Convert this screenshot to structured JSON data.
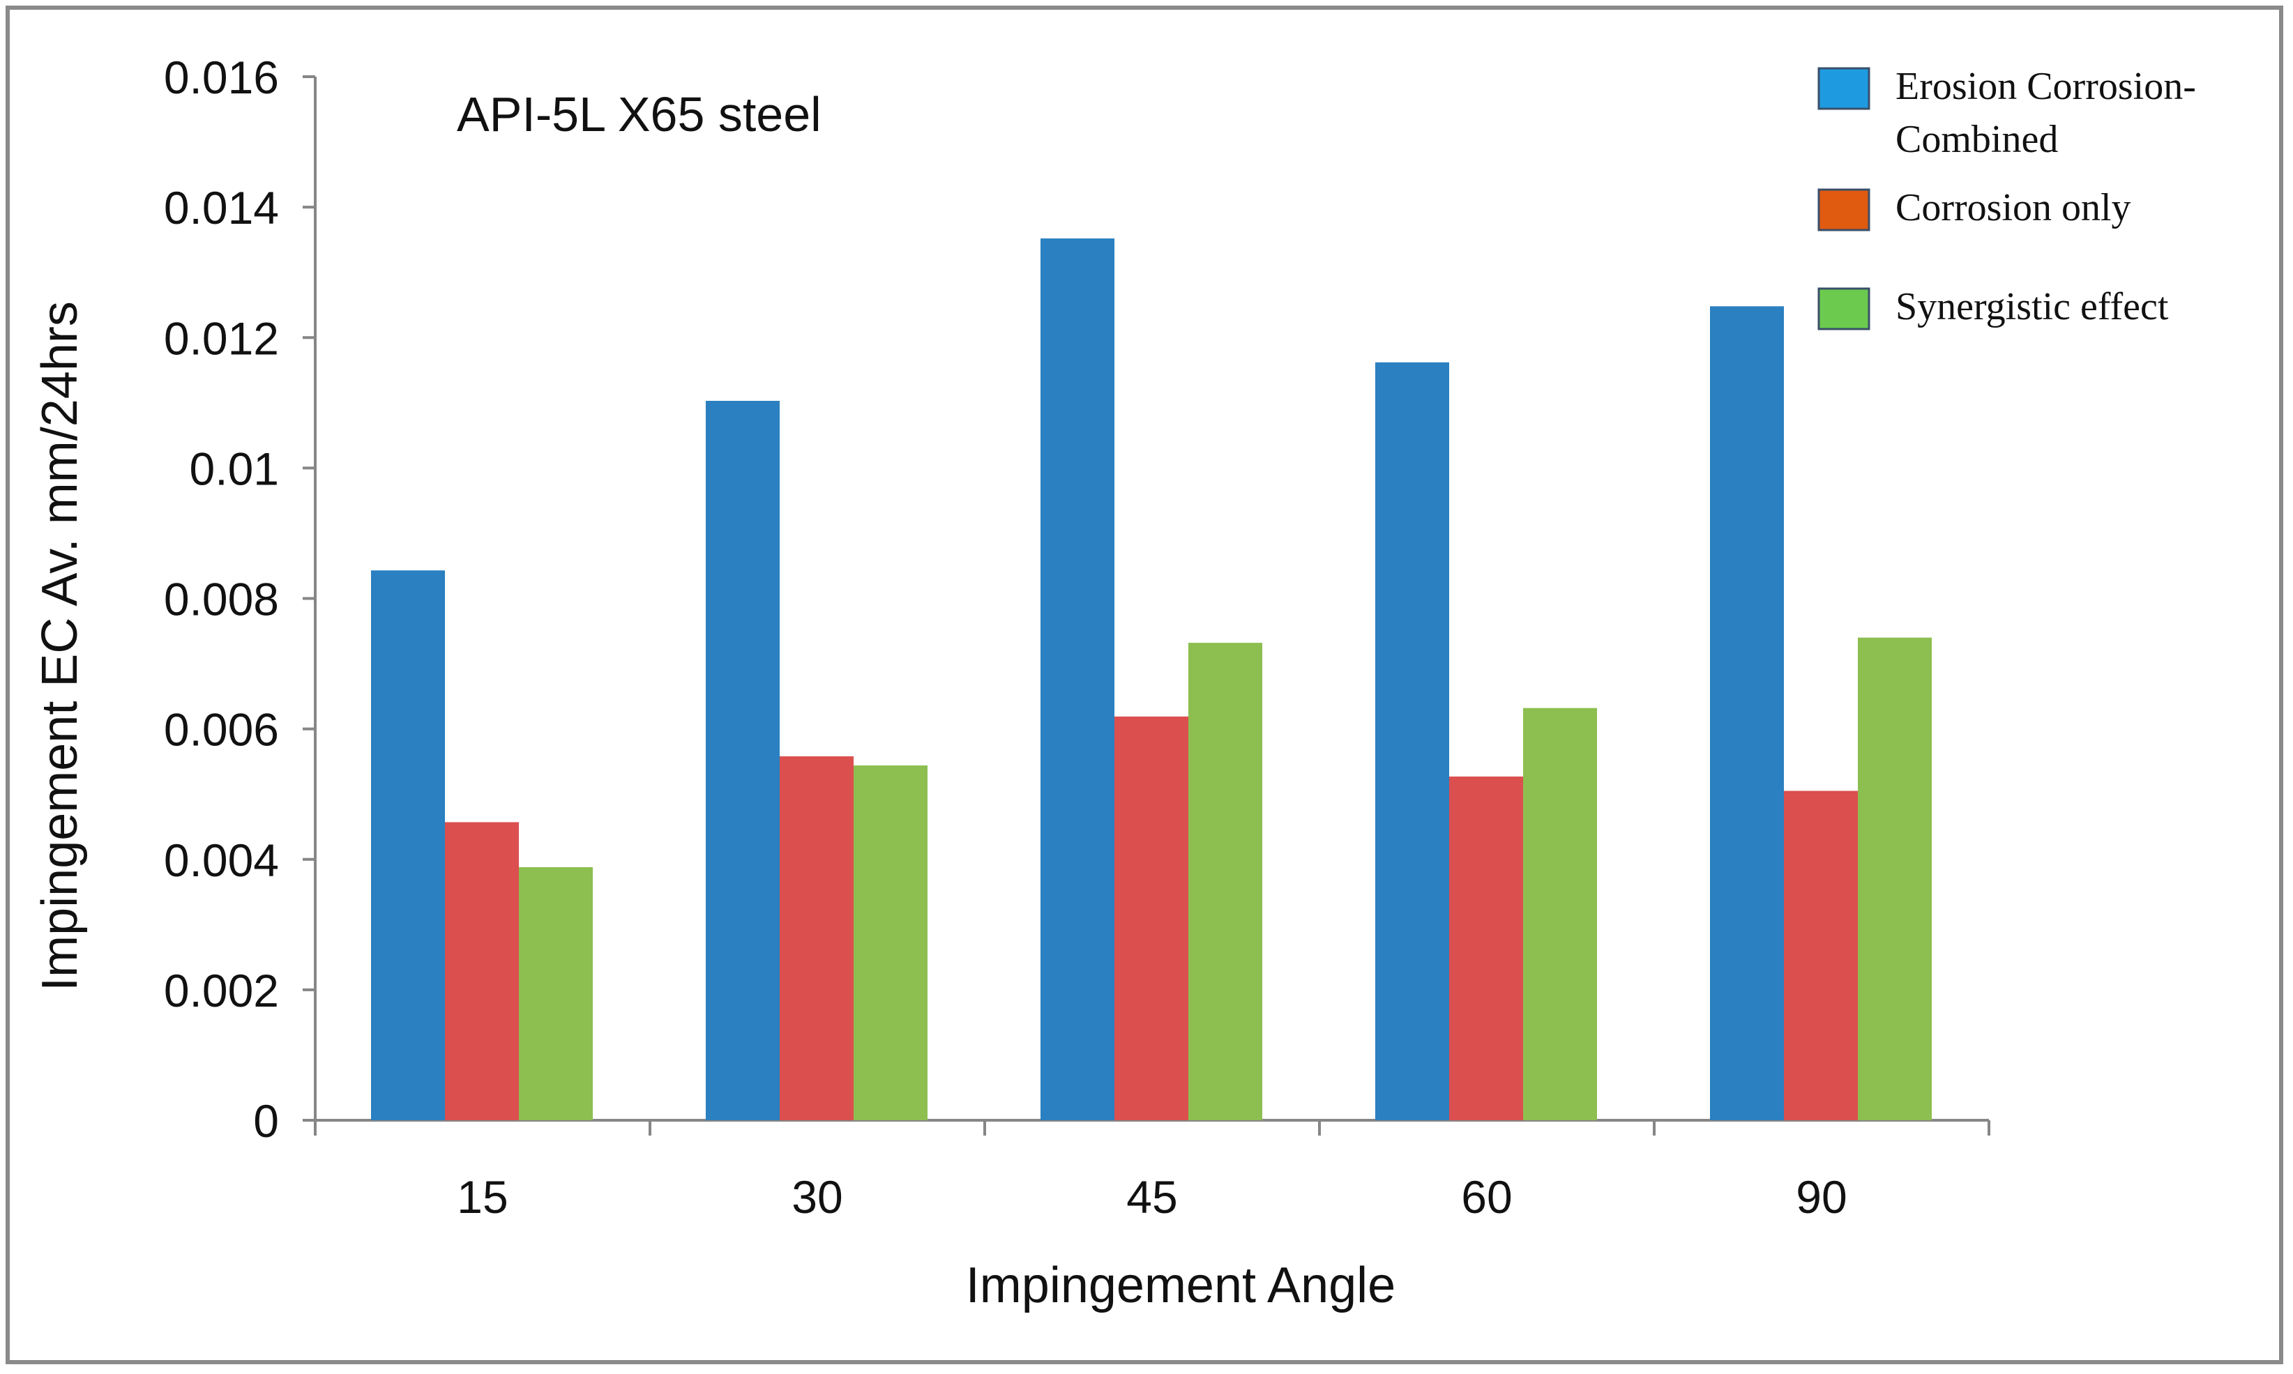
{
  "chart_data": {
    "type": "bar",
    "title": "",
    "annotation": "API-5L X65 steel",
    "xlabel": "Impingement Angle",
    "ylabel": "Impingement EC Av. mm/24hrs",
    "ylim": [
      0,
      0.016
    ],
    "yticks": [
      0,
      0.002,
      0.004,
      0.006,
      0.008,
      0.01,
      0.012,
      0.014,
      0.016
    ],
    "ytick_labels": [
      "0",
      "0.002",
      "0.004",
      "0.006",
      "0.008",
      "0.01",
      "0.012",
      "0.014",
      "0.016"
    ],
    "categories": [
      "15",
      "30",
      "45",
      "60",
      "90"
    ],
    "grid": false,
    "legend_position": "top-right",
    "series": [
      {
        "name": "Erosion Corrosion-Combined",
        "legend_lines": [
          "Erosion Corrosion-",
          "Combined"
        ],
        "color": "#2A80C0",
        "legend_color": "#1E9BE0",
        "values": [
          0.00843,
          0.01103,
          0.01352,
          0.01162,
          0.01248
        ]
      },
      {
        "name": "Corrosion only",
        "legend_lines": [
          "Corrosion only"
        ],
        "color": "#DB4F4F",
        "legend_color": "#E05A10",
        "values": [
          0.00457,
          0.00558,
          0.00619,
          0.00527,
          0.00505
        ]
      },
      {
        "name": "Synergistic effect",
        "legend_lines": [
          "Synergistic effect"
        ],
        "color": "#8DBE50",
        "legend_color": "#6CCB4E",
        "values": [
          0.00388,
          0.00544,
          0.00732,
          0.00632,
          0.0074
        ]
      }
    ]
  }
}
